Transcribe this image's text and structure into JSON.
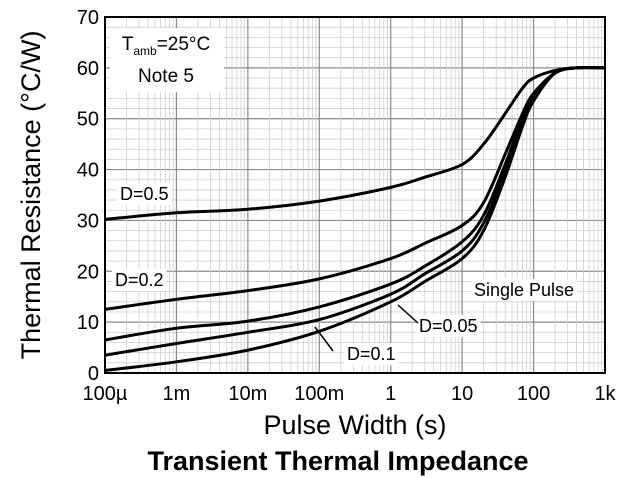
{
  "chart_data": {
    "type": "line",
    "title": "Transient Thermal Impedance",
    "xlabel": "Pulse Width (s)",
    "ylabel": "Thermal Resistance (°C/W)",
    "xscale": "log",
    "xlim": [
      0.0001,
      1000
    ],
    "ylim": [
      0,
      70
    ],
    "grid": true,
    "x_tick_values": [
      0.0001,
      0.001,
      0.01,
      0.1,
      1,
      10,
      100,
      1000
    ],
    "x_tick_labels": [
      "100µ",
      "1m",
      "10m",
      "100m",
      "1",
      "10",
      "100",
      "1k"
    ],
    "y_ticks": [
      0,
      10,
      20,
      30,
      40,
      50,
      60,
      70
    ],
    "annotation": {
      "t_main": "T",
      "t_sub": "amb",
      "t_rest": "=25°C",
      "note": "Note 5"
    },
    "series": [
      {
        "name": "D=0.5",
        "x": [
          0.0001,
          0.001,
          0.01,
          0.1,
          1,
          3,
          10,
          20,
          40,
          70,
          100,
          200,
          400,
          1000
        ],
        "y": [
          30.2,
          31.5,
          32.2,
          33.8,
          36.5,
          38.5,
          41,
          45,
          51,
          56,
          58,
          59.5,
          60,
          60
        ]
      },
      {
        "name": "D=0.2",
        "x": [
          0.0001,
          0.001,
          0.01,
          0.1,
          1,
          3,
          10,
          20,
          40,
          70,
          100,
          200,
          400,
          1000
        ],
        "y": [
          12.5,
          14.5,
          16.2,
          18.5,
          22.5,
          25.5,
          29,
          33.5,
          43,
          51,
          55,
          59,
          60,
          60
        ]
      },
      {
        "name": "D=0.1",
        "x": [
          0.0001,
          0.001,
          0.01,
          0.1,
          1,
          3,
          10,
          20,
          40,
          70,
          100,
          200,
          400,
          1000
        ],
        "y": [
          6.5,
          8.8,
          10.2,
          13,
          17.5,
          21,
          25.8,
          31,
          41,
          50,
          54.5,
          59,
          60,
          60
        ]
      },
      {
        "name": "D=0.05",
        "x": [
          0.0001,
          0.001,
          0.01,
          0.1,
          1,
          3,
          10,
          20,
          40,
          70,
          100,
          200,
          400,
          1000
        ],
        "y": [
          3.5,
          5.8,
          8,
          10.5,
          15.5,
          19.5,
          24,
          29.5,
          39.5,
          49,
          54,
          59,
          60,
          60
        ]
      },
      {
        "name": "Single Pulse",
        "x": [
          0.0001,
          0.001,
          0.01,
          0.1,
          1,
          3,
          10,
          20,
          40,
          70,
          100,
          200,
          400,
          1000
        ],
        "y": [
          0.5,
          2.2,
          4.5,
          8.2,
          14,
          18,
          22.5,
          28,
          38.5,
          48.5,
          53.5,
          59,
          60,
          60
        ]
      }
    ]
  }
}
